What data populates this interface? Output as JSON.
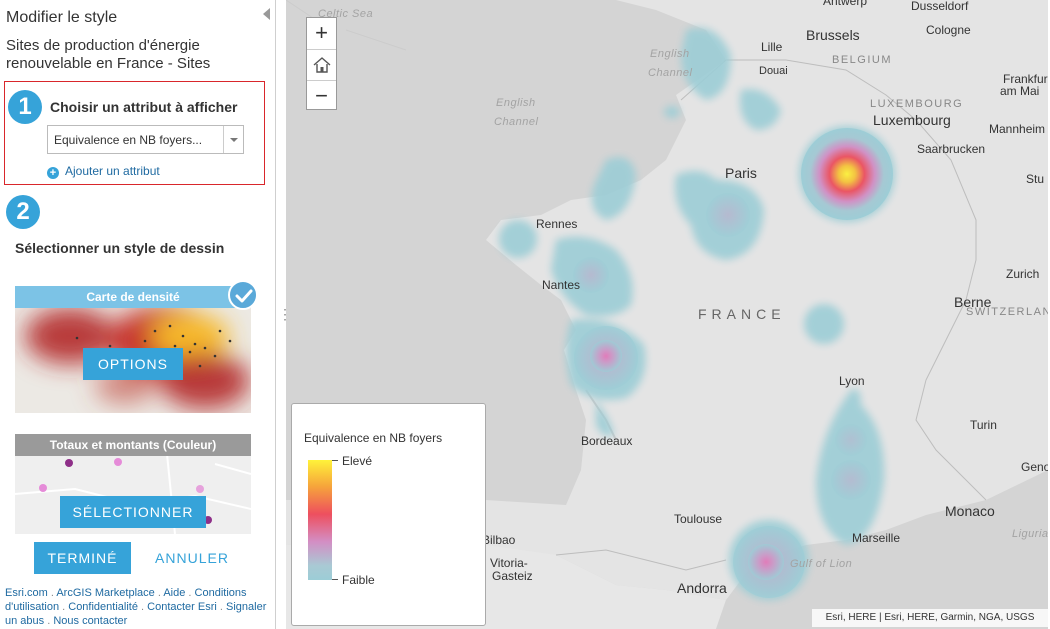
{
  "panel": {
    "title": "Modifier le style",
    "layer_name": "Sites de production d'énergie renouvelable en France - Sites",
    "step1": {
      "number": "1",
      "label": "Choisir un attribut à afficher",
      "selected_attribute": "Equivalence en NB foyers...",
      "add_attribute": "Ajouter un attribut"
    },
    "step2": {
      "number": "2",
      "label": "Sélectionner un style de dessin"
    },
    "styles": [
      {
        "title": "Carte de densité",
        "button": "OPTIONS",
        "selected": true
      },
      {
        "title": "Totaux et montants (Couleur)",
        "button": "SÉLECTIONNER",
        "selected": false
      }
    ],
    "done_button": "TERMINÉ",
    "cancel_button": "ANNULER"
  },
  "footer": {
    "links": [
      "Esri.com",
      "ArcGIS Marketplace",
      "Aide",
      "Conditions d'utilisation",
      "Confidentialité",
      "Contacter Esri",
      "Signaler un abus",
      "Nous contacter"
    ]
  },
  "map": {
    "zoom_in": "+",
    "zoom_out": "−",
    "labels": {
      "antwerp": "Antwerp",
      "dusseldorf": "Dusseldorf",
      "celtic_sea": "Celtic Sea",
      "lille": "Lille",
      "brussels": "Brussels",
      "cologne": "Cologne",
      "english1": "English",
      "channel1": "Channel",
      "douai": "Douai",
      "belgium": "BELGIUM",
      "frankfurt": "Frankfur",
      "am_main": "am Mai",
      "english2": "English",
      "channel2": "Channel",
      "luxembourg_country": "LUXEMBOURG",
      "luxembourg": "Luxembourg",
      "mannheim": "Mannheim",
      "saarbrucken": "Saarbrucken",
      "paris": "Paris",
      "stuttgart": "Stu",
      "rennes": "Rennes",
      "zurich": "Zurich",
      "nantes": "Nantes",
      "france": "FRANCE",
      "bern": "Berne",
      "switzerland": "SWITZERLAND",
      "lyon": "Lyon",
      "bordeaux": "Bordeaux",
      "turin": "Turin",
      "geneva": "Geno",
      "toulouse": "Toulouse",
      "monaco": "Monaco",
      "bilbao": "Bilbao",
      "marseille": "Marseille",
      "ligurian": "Ligurian",
      "vitoria": "Vitoria-",
      "gasteiz": "Gasteiz",
      "gulf_of_lion": "Gulf of Lion",
      "andorra": "Andorra"
    },
    "attribution": "Esri, HERE | Esri, HERE, Garmin, NGA, USGS"
  },
  "legend": {
    "title": "Equivalence en NB foyers",
    "high": "Elevé",
    "low": "Faible"
  },
  "colors": {
    "accent": "#36a3d9",
    "highlight_border": "#d9262b",
    "land": "#e4e4e4",
    "sea": "#d4d4d4",
    "heat_low": "#9ccdd6",
    "heat_mid": "#d38ec4",
    "heat_high": "#fff23a"
  }
}
